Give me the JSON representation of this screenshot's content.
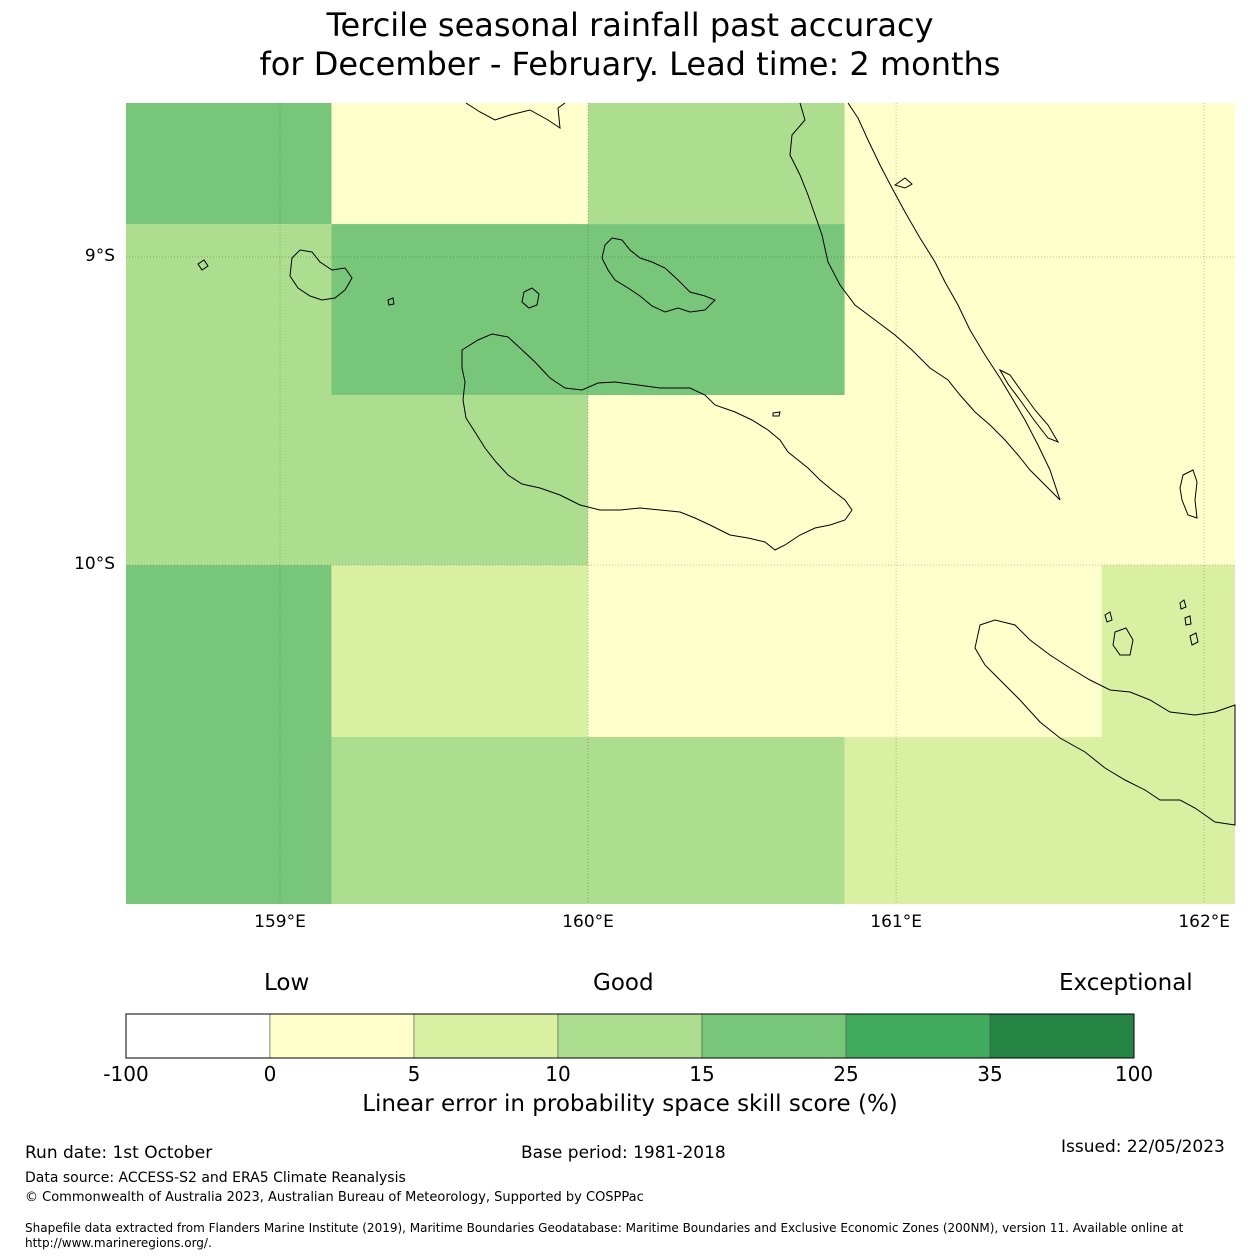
{
  "title": {
    "line1": "Tercile seasonal rainfall past accuracy",
    "line2": "for December - February. Lead time: 2 months"
  },
  "map": {
    "lon_range": [
      158.5,
      162.1
    ],
    "lat_range": [
      -8.5,
      -11.1
    ],
    "x_ticks": [
      {
        "lon": 159,
        "label": "159°E"
      },
      {
        "lon": 160,
        "label": "160°E"
      },
      {
        "lon": 161,
        "label": "161°E"
      },
      {
        "lon": 162,
        "label": "162°E"
      }
    ],
    "y_ticks": [
      {
        "lat": -9,
        "label": "9°S"
      },
      {
        "lat": -10,
        "label": "10°S"
      }
    ],
    "cells": [
      {
        "lon0": 158.5,
        "lon1": 159.167,
        "lat0": -8.5,
        "lat1": -8.893,
        "color": "#78c679"
      },
      {
        "lon0": 159.167,
        "lon1": 160.0,
        "lat0": -8.5,
        "lat1": -8.893,
        "color": "#ffffcc"
      },
      {
        "lon0": 160.0,
        "lon1": 160.833,
        "lat0": -8.5,
        "lat1": -8.893,
        "color": "#addd8e"
      },
      {
        "lon0": 160.833,
        "lon1": 162.1,
        "lat0": -8.5,
        "lat1": -8.893,
        "color": "#ffffcc"
      },
      {
        "lon0": 158.5,
        "lon1": 159.167,
        "lat0": -8.893,
        "lat1": -10.0,
        "color": "#addd8e"
      },
      {
        "lon0": 159.167,
        "lon1": 160.833,
        "lat0": -8.893,
        "lat1": -9.448,
        "color": "#78c679"
      },
      {
        "lon0": 159.167,
        "lon1": 160.0,
        "lat0": -9.448,
        "lat1": -10.0,
        "color": "#addd8e"
      },
      {
        "lon0": 160.0,
        "lon1": 160.833,
        "lat0": -9.448,
        "lat1": -10.0,
        "color": "#ffffcc"
      },
      {
        "lon0": 160.833,
        "lon1": 162.1,
        "lat0": -8.893,
        "lat1": -10.0,
        "color": "#ffffcc"
      },
      {
        "lon0": 158.5,
        "lon1": 159.167,
        "lat0": -10.0,
        "lat1": -11.1,
        "color": "#78c679"
      },
      {
        "lon0": 159.167,
        "lon1": 160.0,
        "lat0": -10.0,
        "lat1": -10.558,
        "color": "#d9f0a3"
      },
      {
        "lon0": 160.0,
        "lon1": 161.667,
        "lat0": -10.0,
        "lat1": -10.558,
        "color": "#ffffcc"
      },
      {
        "lon0": 161.667,
        "lon1": 162.1,
        "lat0": -10.0,
        "lat1": -10.558,
        "color": "#d9f0a3"
      },
      {
        "lon0": 159.167,
        "lon1": 160.833,
        "lat0": -10.558,
        "lat1": -11.1,
        "color": "#addd8e"
      },
      {
        "lon0": 160.833,
        "lon1": 162.1,
        "lat0": -10.558,
        "lat1": -11.1,
        "color": "#d9f0a3"
      }
    ]
  },
  "legend": {
    "categories": [
      "Low",
      "Good",
      "Exceptional"
    ],
    "bins": [
      {
        "from": "-100",
        "to": "0",
        "color": "#ffffff"
      },
      {
        "from": "0",
        "to": "5",
        "color": "#ffffcc"
      },
      {
        "from": "5",
        "to": "10",
        "color": "#d9f0a3"
      },
      {
        "from": "10",
        "to": "15",
        "color": "#addd8e"
      },
      {
        "from": "15",
        "to": "25",
        "color": "#78c679"
      },
      {
        "from": "25",
        "to": "35",
        "color": "#41ab5d"
      },
      {
        "from": "35",
        "to": "100",
        "color": "#238443"
      }
    ],
    "ticks": [
      "-100",
      "0",
      "5",
      "10",
      "15",
      "25",
      "35",
      "100"
    ],
    "label": "Linear error in probability space skill score (%)"
  },
  "footer": {
    "run_date": "Run date: 1st October",
    "base_period": "Base period: 1981-2018",
    "issued": "Issued: 22/05/2023",
    "data_source": "Data source: ACCESS-S2 and ERA5 Climate Reanalysis",
    "copyright": "© Commonwealth of Australia 2023, Australian Bureau of Meteorology, Supported by COSPPac",
    "shapefile_line1": "Shapefile data extracted from Flanders Marine Institute (2019), Maritime Boundaries Geodatabase: Maritime Boundaries and Exclusive Economic Zones (200NM), version 11. Available online at",
    "shapefile_line2": "http://www.marineregions.org/."
  }
}
